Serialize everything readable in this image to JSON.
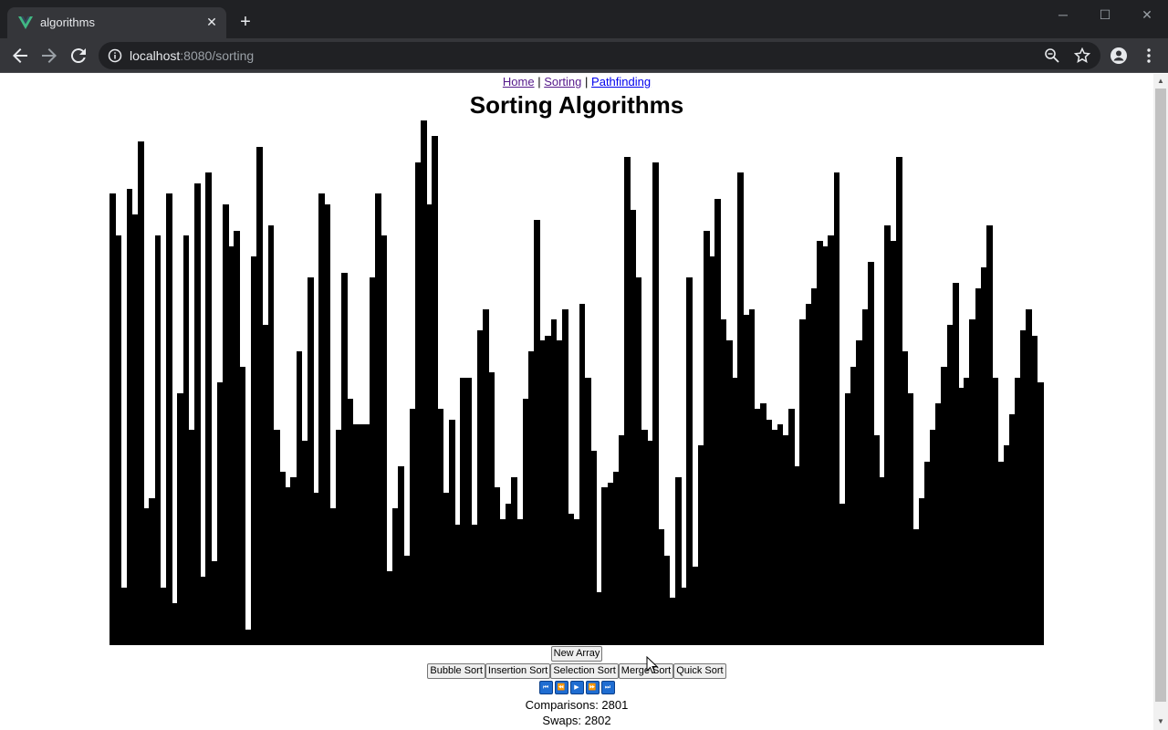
{
  "browser": {
    "tab_title": "algorithms",
    "url_host": "localhost",
    "url_path": ":8080/sorting",
    "icons": [
      "vue-favicon-icon",
      "close-icon",
      "plus-icon",
      "back-icon",
      "forward-icon",
      "reload-icon",
      "info-icon",
      "zoom-icon",
      "star-icon",
      "profile-icon",
      "menu-icon"
    ]
  },
  "nav": {
    "home": "Home",
    "sorting": "Sorting",
    "pathfinding": "Pathfinding",
    "separator": "|"
  },
  "page": {
    "title": "Sorting Algorithms"
  },
  "array_values": [
    86,
    78,
    11,
    87,
    82,
    96,
    26,
    28,
    78,
    11,
    86,
    8,
    48,
    78,
    41,
    88,
    13,
    90,
    16,
    50,
    84,
    76,
    79,
    53,
    3,
    74,
    95,
    61,
    80,
    41,
    33,
    30,
    32,
    56,
    39,
    70,
    29,
    86,
    84,
    26,
    41,
    71,
    47,
    42,
    42,
    42,
    70,
    86,
    78,
    14,
    26,
    34,
    17,
    45,
    92,
    100,
    84,
    97,
    45,
    29,
    43,
    23,
    51,
    51,
    23,
    60,
    64,
    52,
    30,
    24,
    27,
    32,
    24,
    47,
    56,
    81,
    58,
    59,
    62,
    58,
    64,
    25,
    24,
    65,
    51,
    37,
    10,
    30,
    31,
    33,
    40,
    93,
    83,
    70,
    41,
    39,
    92,
    22,
    17,
    9,
    32,
    11,
    70,
    15,
    38,
    79,
    74,
    85,
    62,
    58,
    51,
    90,
    63,
    64,
    45,
    46,
    43,
    41,
    42,
    40,
    45,
    34,
    62,
    65,
    68,
    77,
    76,
    78,
    90,
    27,
    48,
    53,
    58,
    64,
    73,
    40,
    32,
    80,
    77,
    93,
    56,
    48,
    22,
    28,
    35,
    41,
    46,
    53,
    61,
    69,
    49,
    51,
    62,
    68,
    72,
    80,
    51,
    35,
    38,
    44,
    51,
    60,
    64,
    59,
    50
  ],
  "controls": {
    "new_array": "New Array",
    "algorithms": [
      "Bubble Sort",
      "Insertion Sort",
      "Selection Sort",
      "Merge Sort",
      "Quick Sort"
    ],
    "media": [
      {
        "name": "skip-to-start-icon",
        "glyph": "⏮"
      },
      {
        "name": "step-back-icon",
        "glyph": "⏪"
      },
      {
        "name": "play-icon",
        "glyph": "▶"
      },
      {
        "name": "step-forward-icon",
        "glyph": "⏩"
      },
      {
        "name": "skip-to-end-icon",
        "glyph": "⏭"
      }
    ]
  },
  "stats": {
    "comparisons": "Comparisons: 2801",
    "swaps": "Swaps: 2802"
  },
  "colors": {
    "bar": "#000000",
    "media_button": "#1f6dd1"
  }
}
